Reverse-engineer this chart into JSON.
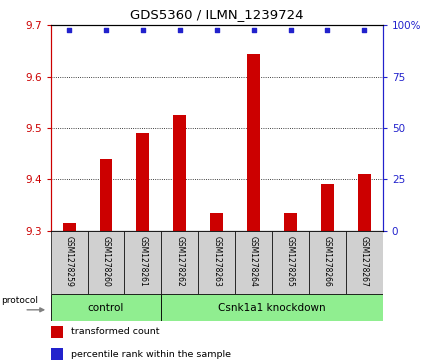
{
  "title": "GDS5360 / ILMN_1239724",
  "samples": [
    "GSM1278259",
    "GSM1278260",
    "GSM1278261",
    "GSM1278262",
    "GSM1278263",
    "GSM1278264",
    "GSM1278265",
    "GSM1278266",
    "GSM1278267"
  ],
  "transformed_counts": [
    9.315,
    9.44,
    9.49,
    9.525,
    9.335,
    9.645,
    9.335,
    9.39,
    9.41
  ],
  "percentile_ranks": [
    98,
    98,
    98,
    98,
    98,
    98,
    98,
    98,
    98
  ],
  "ylim_left": [
    9.3,
    9.7
  ],
  "ylim_right": [
    0,
    100
  ],
  "yticks_left": [
    9.3,
    9.4,
    9.5,
    9.6,
    9.7
  ],
  "yticks_right": [
    0,
    25,
    50,
    75,
    100
  ],
  "bar_color": "#cc0000",
  "dot_color": "#2222cc",
  "groups": [
    {
      "label": "control",
      "start": 0,
      "end": 3,
      "color": "#90ee90"
    },
    {
      "label": "Csnk1a1 knockdown",
      "start": 3,
      "end": 9,
      "color": "#90ee90"
    }
  ],
  "protocol_label": "protocol",
  "legend_items": [
    {
      "color": "#cc0000",
      "label": "transformed count"
    },
    {
      "color": "#2222cc",
      "label": "percentile rank within the sample"
    }
  ],
  "bar_width": 0.35,
  "left_axis_color": "#cc0000",
  "right_axis_color": "#2222cc",
  "sample_box_color": "#d0d0d0",
  "dot_size": 12
}
